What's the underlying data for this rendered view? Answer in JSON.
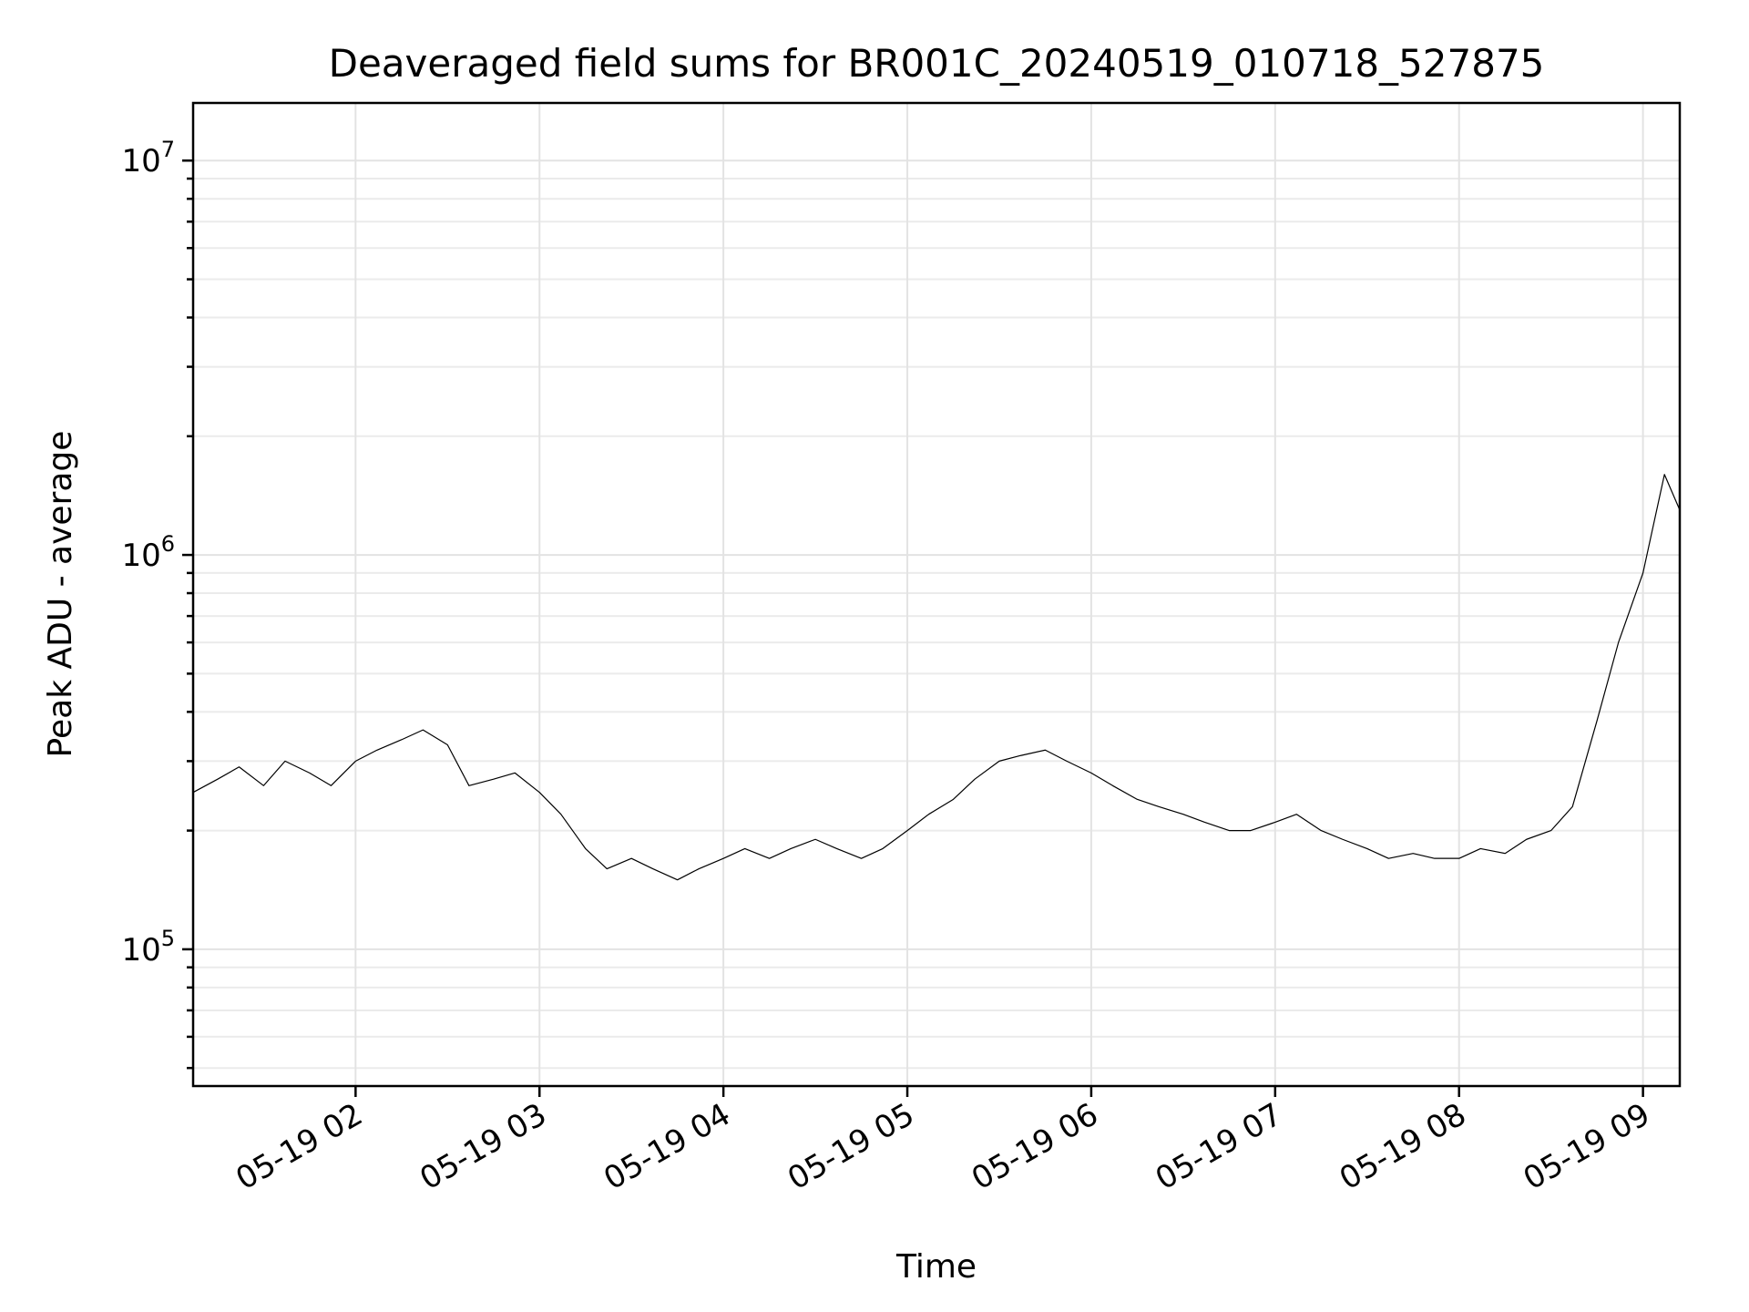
{
  "chart_data": {
    "type": "line",
    "title": "Deaveraged field sums for BR001C_20240519_010718_527875",
    "xlabel": "Time",
    "ylabel": "Peak ADU - average",
    "x_scale": "time",
    "y_scale": "log",
    "xlim": [
      "2024-05-19 01:07",
      "2024-05-19 09:12"
    ],
    "ylim": [
      45000,
      14000000
    ],
    "x_ticks": [
      {
        "value": "2024-05-19 02:00",
        "label": "05-19 02"
      },
      {
        "value": "2024-05-19 03:00",
        "label": "05-19 03"
      },
      {
        "value": "2024-05-19 04:00",
        "label": "05-19 04"
      },
      {
        "value": "2024-05-19 05:00",
        "label": "05-19 05"
      },
      {
        "value": "2024-05-19 06:00",
        "label": "05-19 06"
      },
      {
        "value": "2024-05-19 07:00",
        "label": "05-19 07"
      },
      {
        "value": "2024-05-19 08:00",
        "label": "05-19 08"
      },
      {
        "value": "2024-05-19 09:00",
        "label": "05-19 09"
      }
    ],
    "y_ticks": [
      {
        "value": 100000,
        "base": "10",
        "exp": "5"
      },
      {
        "value": 1000000,
        "base": "10",
        "exp": "6"
      },
      {
        "value": 10000000,
        "base": "10",
        "exp": "7"
      }
    ],
    "grid": true,
    "legend": "none",
    "line_color": "#000000",
    "series": [
      {
        "x": [
          "2024-05-19 01:07",
          "2024-05-19 01:15",
          "2024-05-19 01:22",
          "2024-05-19 01:30",
          "2024-05-19 01:37",
          "2024-05-19 01:45",
          "2024-05-19 01:52",
          "2024-05-19 02:00",
          "2024-05-19 02:07",
          "2024-05-19 02:15",
          "2024-05-19 02:22",
          "2024-05-19 02:30",
          "2024-05-19 02:37",
          "2024-05-19 02:45",
          "2024-05-19 02:52",
          "2024-05-19 03:00",
          "2024-05-19 03:07",
          "2024-05-19 03:15",
          "2024-05-19 03:22",
          "2024-05-19 03:30",
          "2024-05-19 03:37",
          "2024-05-19 03:45",
          "2024-05-19 03:52",
          "2024-05-19 04:00",
          "2024-05-19 04:07",
          "2024-05-19 04:15",
          "2024-05-19 04:22",
          "2024-05-19 04:30",
          "2024-05-19 04:37",
          "2024-05-19 04:45",
          "2024-05-19 04:52",
          "2024-05-19 05:00",
          "2024-05-19 05:07",
          "2024-05-19 05:15",
          "2024-05-19 05:22",
          "2024-05-19 05:30",
          "2024-05-19 05:37",
          "2024-05-19 05:45",
          "2024-05-19 05:52",
          "2024-05-19 06:00",
          "2024-05-19 06:07",
          "2024-05-19 06:15",
          "2024-05-19 06:22",
          "2024-05-19 06:30",
          "2024-05-19 06:37",
          "2024-05-19 06:45",
          "2024-05-19 06:52",
          "2024-05-19 07:00",
          "2024-05-19 07:07",
          "2024-05-19 07:15",
          "2024-05-19 07:22",
          "2024-05-19 07:30",
          "2024-05-19 07:37",
          "2024-05-19 07:45",
          "2024-05-19 07:52",
          "2024-05-19 08:00",
          "2024-05-19 08:07",
          "2024-05-19 08:15",
          "2024-05-19 08:22",
          "2024-05-19 08:30",
          "2024-05-19 08:37",
          "2024-05-19 08:45",
          "2024-05-19 08:52",
          "2024-05-19 09:00",
          "2024-05-19 09:07",
          "2024-05-19 09:12"
        ],
        "y": [
          250000,
          270000,
          290000,
          260000,
          300000,
          280000,
          260000,
          300000,
          320000,
          340000,
          360000,
          330000,
          260000,
          270000,
          280000,
          250000,
          220000,
          180000,
          160000,
          170000,
          160000,
          150000,
          160000,
          170000,
          180000,
          170000,
          180000,
          190000,
          180000,
          170000,
          180000,
          200000,
          220000,
          240000,
          270000,
          300000,
          310000,
          320000,
          300000,
          280000,
          260000,
          240000,
          230000,
          220000,
          210000,
          200000,
          200000,
          210000,
          220000,
          200000,
          190000,
          180000,
          170000,
          175000,
          170000,
          170000,
          180000,
          175000,
          190000,
          200000,
          230000,
          380000,
          600000,
          900000,
          1600000,
          1300000
        ]
      }
    ]
  }
}
